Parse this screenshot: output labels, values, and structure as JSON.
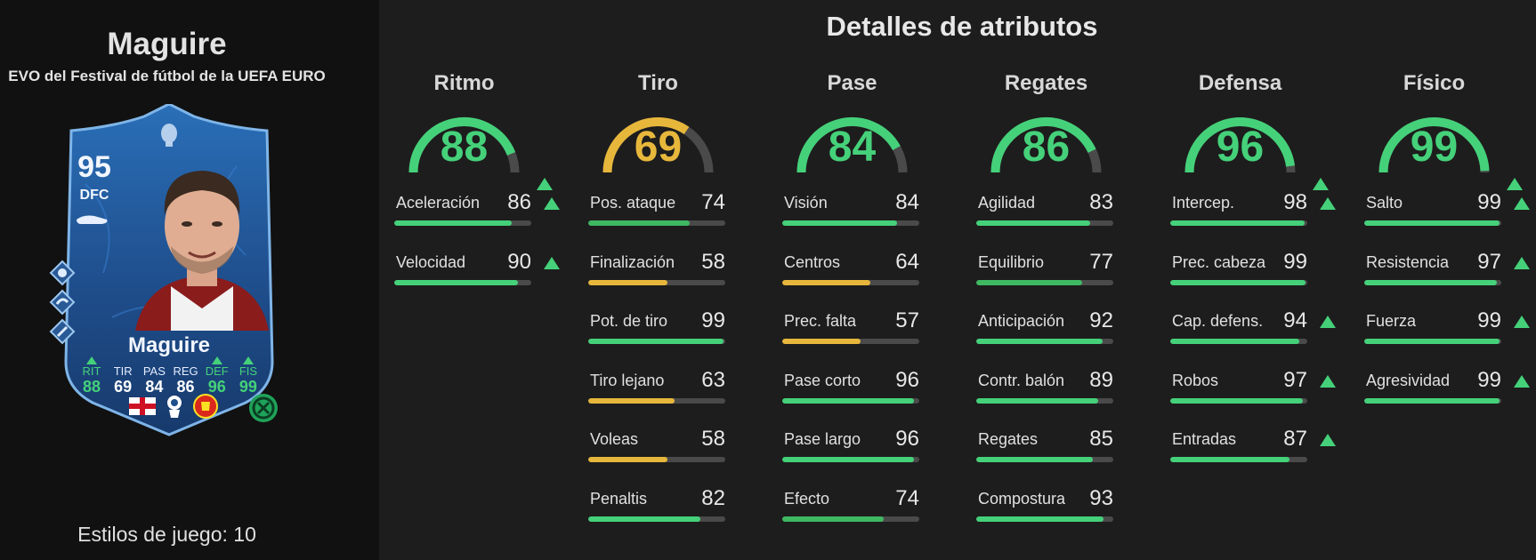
{
  "player": {
    "name": "Maguire",
    "subtitle": "EVO del Festival de fútbol de la UEFA EURO",
    "playstyles_text": "Estilos de juego: 10"
  },
  "card": {
    "rating": "95",
    "position": "DFC",
    "name": "Maguire",
    "stats": [
      {
        "label": "RIT",
        "value": "88",
        "upgraded": true
      },
      {
        "label": "TIR",
        "value": "69",
        "upgraded": false
      },
      {
        "label": "PAS",
        "value": "84",
        "upgraded": false
      },
      {
        "label": "REG",
        "value": "86",
        "upgraded": false
      },
      {
        "label": "DEF",
        "value": "96",
        "upgraded": true
      },
      {
        "label": "FIS",
        "value": "99",
        "upgraded": true
      }
    ],
    "icons": [
      "boot-icon",
      "trophy-icon",
      "playstyle-icon",
      "england-flag-icon",
      "premier-league-icon",
      "club-crest-icon",
      "evo-icon"
    ]
  },
  "colors": {
    "green": "#45d17a",
    "yellow": "#e7b73c",
    "track": "#4a4a4a",
    "card_blue": "#1f4e8c"
  },
  "main_title": "Detalles de atributos",
  "categories": [
    {
      "name": "Ritmo",
      "value": 88,
      "upgraded": true,
      "stats": [
        {
          "name": "Aceleración",
          "value": 86,
          "upgraded": true
        },
        {
          "name": "Velocidad",
          "value": 90,
          "upgraded": true
        }
      ]
    },
    {
      "name": "Tiro",
      "value": 69,
      "upgraded": false,
      "stats": [
        {
          "name": "Pos. ataque",
          "value": 74,
          "upgraded": false
        },
        {
          "name": "Finalización",
          "value": 58,
          "upgraded": false
        },
        {
          "name": "Pot. de tiro",
          "value": 99,
          "upgraded": false
        },
        {
          "name": "Tiro lejano",
          "value": 63,
          "upgraded": false
        },
        {
          "name": "Voleas",
          "value": 58,
          "upgraded": false
        },
        {
          "name": "Penaltis",
          "value": 82,
          "upgraded": false
        }
      ]
    },
    {
      "name": "Pase",
      "value": 84,
      "upgraded": false,
      "stats": [
        {
          "name": "Visión",
          "value": 84,
          "upgraded": false
        },
        {
          "name": "Centros",
          "value": 64,
          "upgraded": false
        },
        {
          "name": "Prec. falta",
          "value": 57,
          "upgraded": false
        },
        {
          "name": "Pase corto",
          "value": 96,
          "upgraded": false
        },
        {
          "name": "Pase largo",
          "value": 96,
          "upgraded": false
        },
        {
          "name": "Efecto",
          "value": 74,
          "upgraded": false
        }
      ]
    },
    {
      "name": "Regates",
      "value": 86,
      "upgraded": false,
      "stats": [
        {
          "name": "Agilidad",
          "value": 83,
          "upgraded": false
        },
        {
          "name": "Equilibrio",
          "value": 77,
          "upgraded": false
        },
        {
          "name": "Anticipación",
          "value": 92,
          "upgraded": false
        },
        {
          "name": "Contr. balón",
          "value": 89,
          "upgraded": false
        },
        {
          "name": "Regates",
          "value": 85,
          "upgraded": false
        },
        {
          "name": "Compostura",
          "value": 93,
          "upgraded": false
        }
      ]
    },
    {
      "name": "Defensa",
      "value": 96,
      "upgraded": true,
      "stats": [
        {
          "name": "Intercep.",
          "value": 98,
          "upgraded": true
        },
        {
          "name": "Prec. cabeza",
          "value": 99,
          "upgraded": false
        },
        {
          "name": "Cap. defens.",
          "value": 94,
          "upgraded": true
        },
        {
          "name": "Robos",
          "value": 97,
          "upgraded": true
        },
        {
          "name": "Entradas",
          "value": 87,
          "upgraded": true
        }
      ]
    },
    {
      "name": "Físico",
      "value": 99,
      "upgraded": true,
      "stats": [
        {
          "name": "Salto",
          "value": 99,
          "upgraded": true
        },
        {
          "name": "Resistencia",
          "value": 97,
          "upgraded": true
        },
        {
          "name": "Fuerza",
          "value": 99,
          "upgraded": true
        },
        {
          "name": "Agresividad",
          "value": 99,
          "upgraded": true
        }
      ]
    }
  ]
}
